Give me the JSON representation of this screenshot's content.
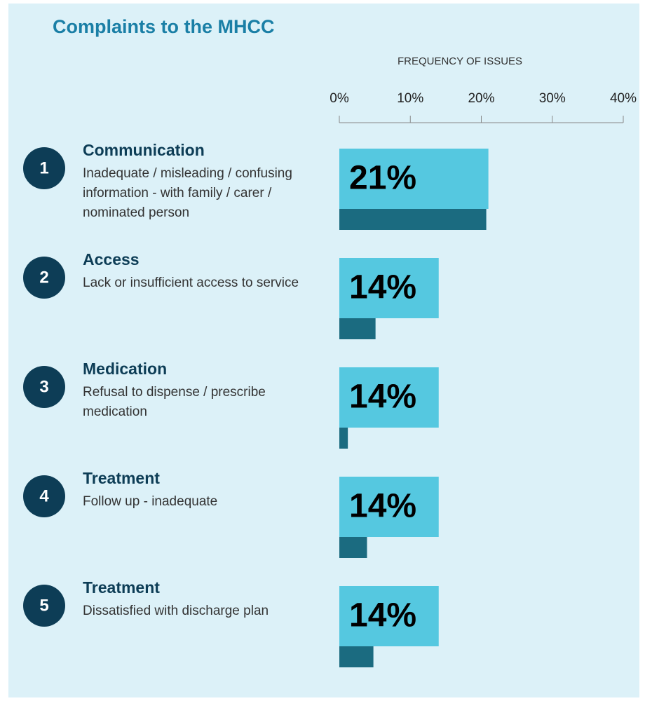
{
  "chart_data": {
    "type": "bar",
    "title": "Complaints to the MHCC",
    "x_label": "FREQUENCY OF ISSUES",
    "ranks": [
      1,
      2,
      3,
      4,
      5
    ],
    "categories": [
      "Communication",
      "Access",
      "Medication",
      "Treatment",
      "Treatment"
    ],
    "descriptions": [
      "Inadequate / misleading / confusing information - with family / carer / nominated person",
      "Lack or insufficient access to service",
      "Refusal to dispense / prescribe medication",
      "Follow up - inadequate",
      "Dissatisfied with discharge plan"
    ],
    "series": [
      {
        "color": "#55c8e0",
        "values": [
          21,
          14,
          14,
          14,
          14
        ],
        "value_labels": [
          "21%",
          "14%",
          "14%",
          "14%",
          "14%"
        ]
      },
      {
        "color": "#1b6b80",
        "values": [
          20.7,
          5.1,
          1.2,
          3.9,
          4.8
        ]
      }
    ],
    "xlim": [
      0,
      40
    ],
    "xticks": [
      {
        "value": 0,
        "label": "0%"
      },
      {
        "value": 10,
        "label": "10%"
      },
      {
        "value": 20,
        "label": "20%"
      },
      {
        "value": 30,
        "label": "30%"
      },
      {
        "value": 40,
        "label": "40%"
      }
    ]
  }
}
